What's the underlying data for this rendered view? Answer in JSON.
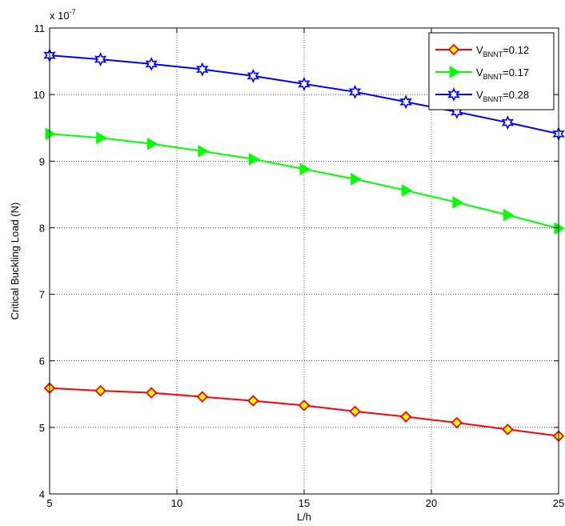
{
  "chart_data": {
    "type": "line",
    "xlabel": "L/h",
    "ylabel": "Critical Buckling Load (N)",
    "y_multiplier": "x 10",
    "y_multiplier_exp": "-7",
    "xlim": [
      5,
      25
    ],
    "ylim": [
      4,
      11
    ],
    "xticks": [
      5,
      10,
      15,
      20,
      25
    ],
    "yticks": [
      4,
      5,
      6,
      7,
      8,
      9,
      10,
      11
    ],
    "grid": true,
    "legend_placement": "top-right",
    "x": [
      5,
      7,
      9,
      11,
      13,
      15,
      17,
      19,
      21,
      23,
      25
    ],
    "series": [
      {
        "name_main": "V",
        "name_sub": "BNNT",
        "name_rest": "=0.12",
        "color": "#ff0000",
        "marker": "diamond",
        "marker_fill": "#ffff00",
        "values": [
          5.59,
          5.55,
          5.52,
          5.46,
          5.4,
          5.33,
          5.24,
          5.16,
          5.07,
          4.97,
          4.87
        ]
      },
      {
        "name_main": "V",
        "name_sub": "BNNT",
        "name_rest": "=0.17",
        "color": "#00ff00",
        "marker": "triangle-right",
        "marker_fill": "#00ff00",
        "values": [
          9.41,
          9.35,
          9.26,
          9.15,
          9.03,
          8.88,
          8.73,
          8.56,
          8.38,
          8.19,
          7.99
        ]
      },
      {
        "name_main": "V",
        "name_sub": "BNNT",
        "name_rest": "=0.28",
        "color": "#0000ff",
        "marker": "hexagram",
        "marker_fill": "#ffffff",
        "values": [
          10.59,
          10.53,
          10.46,
          10.38,
          10.28,
          10.16,
          10.04,
          9.89,
          9.74,
          9.58,
          9.41
        ]
      }
    ]
  }
}
